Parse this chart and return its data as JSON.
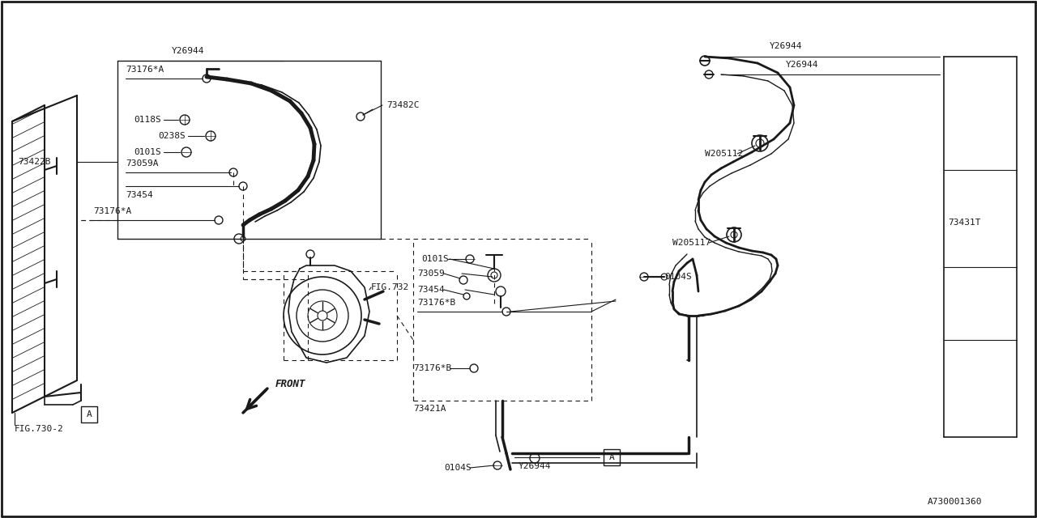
{
  "bg_color": "#ffffff",
  "line_color": "#1a1a1a",
  "diagram_id": "A730001360",
  "labels": {
    "Y26944_top_left": "Y26944",
    "73176A_top": "73176*A",
    "73482C": "73482C",
    "73422B": "73422B",
    "0118S": "0118S",
    "0238S": "0238S",
    "0101S_left": "0101S",
    "73059A": "73059A",
    "73454_left": "73454",
    "73176A_bottom": "73176*A",
    "FIG730_2": "FIG.730-2",
    "FIG732": "FIG.732",
    "FRONT": "FRONT",
    "A_box_left": "A",
    "0101S_right": "0101S",
    "73059_right": "73059",
    "73454_right": "73454",
    "73176B_top": "73176*B",
    "73176B_bottom": "73176*B",
    "73421A": "73421A",
    "0104S_bottom": "0104S",
    "0104S_right": "0104S",
    "Y26944_right_top1": "Y26944",
    "Y26944_right_top2": "Y26944",
    "Y26944_bottom": "Y26944",
    "W205112": "W205112",
    "W205117": "W205117",
    "73431T": "73431T",
    "A_box_right": "A"
  }
}
